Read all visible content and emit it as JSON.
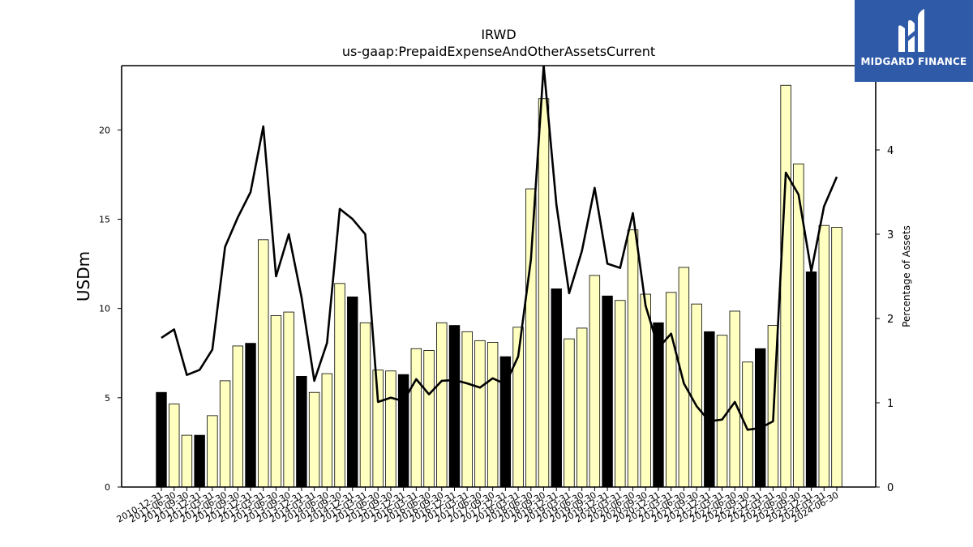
{
  "chart_data": {
    "type": "bar",
    "title": "IRWD",
    "subtitle": "us-gaap:PrepaidExpenseAndOtherAssetsCurrent",
    "ylabel": "USDm",
    "y2label": "Percentage of Assets",
    "ylim": [
      0,
      23.6
    ],
    "y2lim": [
      0,
      5.0
    ],
    "yticks": [
      0,
      5,
      10,
      15,
      20
    ],
    "y2ticks": [
      0,
      1,
      2,
      3,
      4
    ],
    "categories": [
      "2010-12-31",
      "2011-06-30",
      "2011-09-30",
      "2011-12-31",
      "2012-03-31",
      "2012-06-30",
      "2012-09-30",
      "2012-12-31",
      "2013-03-31",
      "2013-06-30",
      "2013-09-30",
      "2013-12-31",
      "2014-03-31",
      "2014-06-30",
      "2014-09-30",
      "2014-12-31",
      "2015-03-31",
      "2015-06-30",
      "2015-09-30",
      "2015-12-31",
      "2016-03-31",
      "2016-06-30",
      "2016-09-30",
      "2016-12-31",
      "2017-03-31",
      "2017-06-30",
      "2017-09-30",
      "2017-12-31",
      "2018-03-31",
      "2018-06-30",
      "2018-09-30",
      "2018-12-31",
      "2019-03-31",
      "2019-06-30",
      "2019-09-30",
      "2019-12-31",
      "2020-03-31",
      "2020-06-30",
      "2020-09-30",
      "2020-12-31",
      "2021-03-31",
      "2021-06-30",
      "2021-09-30",
      "2021-12-31",
      "2022-03-31",
      "2022-06-30",
      "2022-09-30",
      "2022-12-31",
      "2023-03-31",
      "2023-06-30",
      "2023-09-30",
      "2023-12-31",
      "2024-03-31",
      "2024-06-30"
    ],
    "series": [
      {
        "type": "bar",
        "values": [
          5.3,
          4.65,
          2.9,
          2.9,
          4.0,
          5.95,
          7.9,
          8.05,
          13.85,
          9.6,
          9.8,
          6.2,
          5.3,
          6.35,
          11.4,
          10.65,
          9.2,
          6.55,
          6.5,
          6.3,
          7.75,
          7.65,
          9.2,
          9.05,
          8.7,
          8.2,
          8.1,
          7.3,
          8.95,
          16.7,
          21.75,
          11.1,
          8.3,
          8.9,
          11.85,
          10.7,
          10.45,
          14.4,
          10.8,
          9.2,
          10.9,
          12.3,
          10.25,
          8.7,
          8.5,
          9.85,
          7.0,
          7.75,
          9.05,
          22.5,
          18.1,
          12.05,
          14.65,
          14.55
        ],
        "year_end": [
          true,
          false,
          false,
          true,
          false,
          false,
          false,
          true,
          false,
          false,
          false,
          true,
          false,
          false,
          false,
          true,
          false,
          false,
          false,
          true,
          false,
          false,
          false,
          true,
          false,
          false,
          false,
          true,
          false,
          false,
          false,
          true,
          false,
          false,
          false,
          true,
          false,
          false,
          false,
          true,
          false,
          false,
          false,
          true,
          false,
          false,
          false,
          true,
          false,
          false,
          false,
          true,
          false,
          false
        ],
        "colors": {
          "year_end": "#000000",
          "quarter": "#ffffc0",
          "edge": "#000000"
        }
      },
      {
        "type": "line",
        "axis": "right",
        "values": [
          1.77,
          1.87,
          1.33,
          1.39,
          1.63,
          2.85,
          3.2,
          3.5,
          4.28,
          2.5,
          3.0,
          2.25,
          1.26,
          1.71,
          3.3,
          3.18,
          3.0,
          1.01,
          1.06,
          1.02,
          1.28,
          1.1,
          1.26,
          1.27,
          1.23,
          1.18,
          1.29,
          1.22,
          1.55,
          2.7,
          5.0,
          3.35,
          2.3,
          2.8,
          3.55,
          2.65,
          2.6,
          3.25,
          2.15,
          1.65,
          1.82,
          1.23,
          0.96,
          0.78,
          0.8,
          1.01,
          0.68,
          0.7,
          0.78,
          3.73,
          3.47,
          2.56,
          3.33,
          3.68
        ],
        "color": "#000000"
      }
    ]
  },
  "logo": {
    "text": "MIDGARD FINANCE",
    "color": "#2f5aa8"
  }
}
